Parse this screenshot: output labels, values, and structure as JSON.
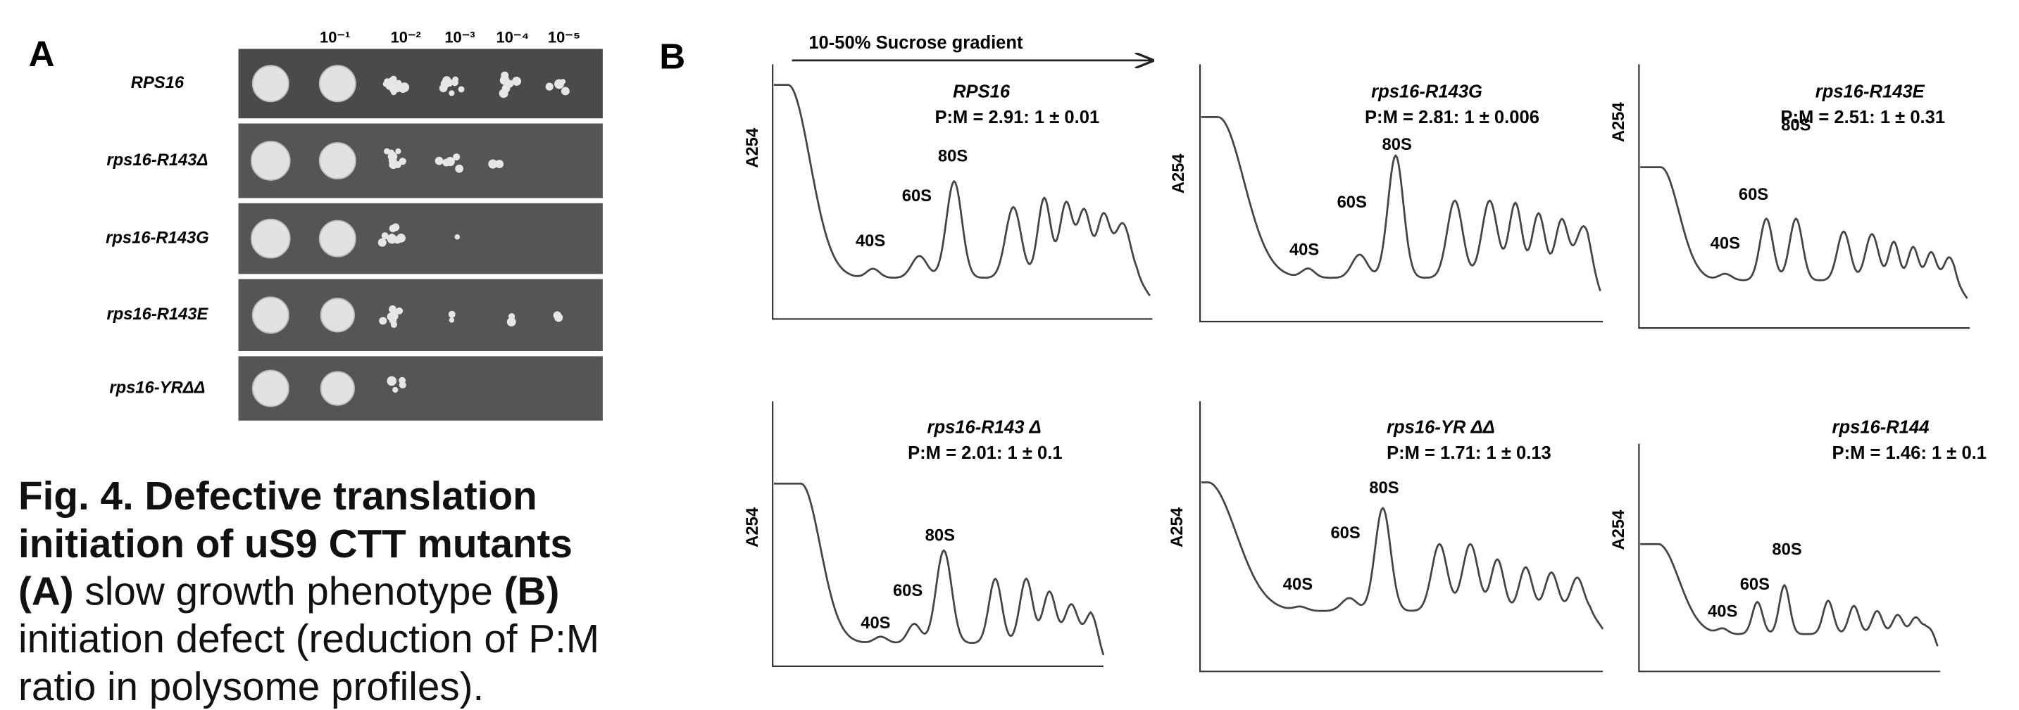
{
  "panel_a": {
    "label": "A",
    "dilutions": [
      "10⁻¹",
      "10⁻²",
      "10⁻³",
      "10⁻⁴",
      "10⁻⁵"
    ],
    "strains": [
      "RPS16",
      "rps16-R143Δ",
      "rps16-R143G",
      "rps16-R143E",
      "rps16-YRΔΔ"
    ]
  },
  "caption": {
    "lines": [
      [
        {
          "text": "Fig. 4. Defective translation",
          "bold": true
        }
      ],
      [
        {
          "text": "initiation of uS9 CTT mutants",
          "bold": true
        }
      ],
      [
        {
          "text": "(A)",
          "bold": true
        },
        {
          "text": " slow growth phenotype ",
          "bold": false
        },
        {
          "text": "(B)",
          "bold": true
        }
      ],
      [
        {
          "text": "initiation defect (reduction of P:M",
          "bold": false
        }
      ],
      [
        {
          "text": "ratio in polysome profiles).",
          "bold": false
        }
      ]
    ]
  },
  "panel_b": {
    "label": "B",
    "gradient": "10-50% Sucrose gradient",
    "profiles": [
      {
        "name": "RPS16",
        "ratio": "P:M = 2.91: 1 ± 0.01",
        "y_label": "A254",
        "peaks": [
          "40S",
          "60S",
          "80S"
        ]
      },
      {
        "name": "rps16-R143G",
        "ratio": "P:M = 2.81: 1 ± 0.006",
        "y_label": "A254",
        "peaks": [
          "40S",
          "60S",
          "80S"
        ]
      },
      {
        "name": "rps16-R143E",
        "ratio": "P:M = 2.51: 1 ± 0.31",
        "y_label": "A254",
        "peaks": [
          "40S",
          "60S",
          "80S"
        ]
      },
      {
        "name": "rps16-R143 Δ",
        "ratio": "P:M = 2.01: 1 ± 0.1",
        "y_label": "A254",
        "peaks": [
          "40S",
          "60S",
          "80S"
        ]
      },
      {
        "name": "rps16-YR ΔΔ",
        "ratio": "P:M = 1.71: 1 ± 0.13",
        "y_label": "A254",
        "peaks": [
          "40S",
          "60S",
          "80S"
        ]
      },
      {
        "name": "rps16-R144",
        "ratio": "P:M = 1.46: 1 ± 0.1",
        "y_label": "A254",
        "peaks": [
          "40S",
          "60S",
          "80S"
        ]
      }
    ]
  }
}
